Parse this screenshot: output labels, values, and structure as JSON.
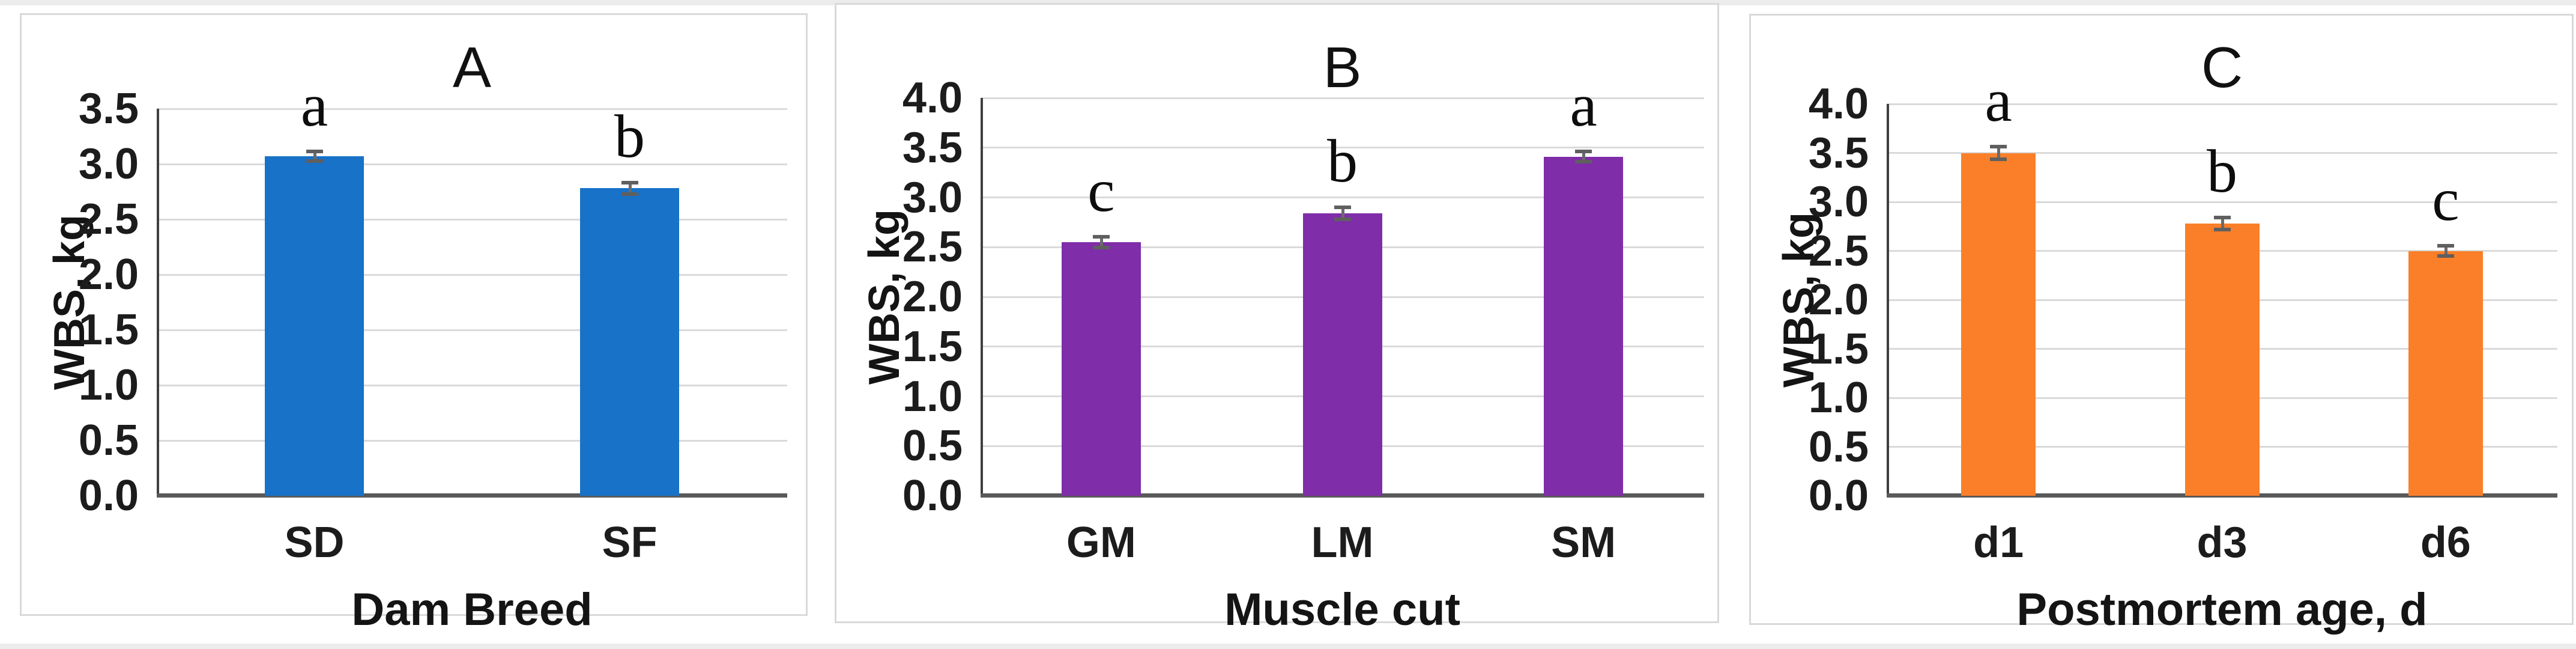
{
  "figure": {
    "background_color": "#ffffff",
    "panel_border_color": "#d9d9d9",
    "gridline_color": "#dadada",
    "error_bar_color": "#6a6a6a",
    "panel_labels": [
      "A",
      "B",
      "C"
    ]
  },
  "chart_data": [
    {
      "type": "bar",
      "title": "A",
      "ylabel": "WBS, kg",
      "xlabel": "Dam Breed",
      "categories": [
        "SD",
        "SF"
      ],
      "values": [
        3.07,
        2.78
      ],
      "errors": [
        0.06,
        0.07
      ],
      "sig_letters": [
        "a",
        "b"
      ],
      "ylim": [
        0.0,
        3.5
      ],
      "ytick_labels": [
        "0.0",
        "0.5",
        "1.0",
        "1.5",
        "2.0",
        "2.5",
        "3.0",
        "3.5"
      ],
      "bar_color": "#1772c8",
      "grid": true,
      "legend": null
    },
    {
      "type": "bar",
      "title": "B",
      "ylabel": "WBS, kg",
      "xlabel": "Muscle cut",
      "categories": [
        "GM",
        "LM",
        "SM"
      ],
      "values": [
        2.55,
        2.84,
        3.41
      ],
      "errors": [
        0.07,
        0.08,
        0.07
      ],
      "sig_letters": [
        "c",
        "b",
        "a"
      ],
      "ylim": [
        0.0,
        4.0
      ],
      "ytick_labels": [
        "0.0",
        "0.5",
        "1.0",
        "1.5",
        "2.0",
        "2.5",
        "3.0",
        "3.5",
        "4.0"
      ],
      "bar_color": "#7f2da8",
      "grid": true,
      "legend": null
    },
    {
      "type": "bar",
      "title": "C",
      "ylabel": "WBS, kg",
      "xlabel": "Postmortem age, d",
      "categories": [
        "d1",
        "d3",
        "d6"
      ],
      "values": [
        3.5,
        2.78,
        2.5
      ],
      "errors": [
        0.08,
        0.08,
        0.07
      ],
      "sig_letters": [
        "a",
        "b",
        "c"
      ],
      "ylim": [
        0.0,
        4.0
      ],
      "ytick_labels": [
        "0.0",
        "0.5",
        "1.0",
        "1.5",
        "2.0",
        "2.5",
        "3.0",
        "3.5",
        "4.0"
      ],
      "bar_color": "#fa7f28",
      "grid": true,
      "legend": null
    }
  ]
}
